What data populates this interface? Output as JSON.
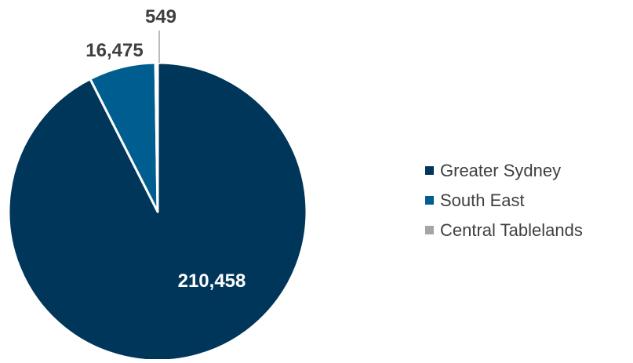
{
  "chart_data": {
    "type": "pie",
    "categories": [
      "Greater Sydney",
      "South East",
      "Central Tablelands"
    ],
    "values": [
      210458,
      16475,
      549
    ],
    "value_labels": [
      "210,458",
      "16,475",
      "549"
    ],
    "colors": [
      "#00365a",
      "#005d8f",
      "#a5a5a5"
    ],
    "label_colors": [
      "#ffffff",
      "#3f3f3f",
      "#3f3f3f"
    ],
    "start_angle_deg": 0,
    "direction": "clockwise",
    "legend_position": "right",
    "title": "",
    "slice_border_color": "#ffffff"
  }
}
